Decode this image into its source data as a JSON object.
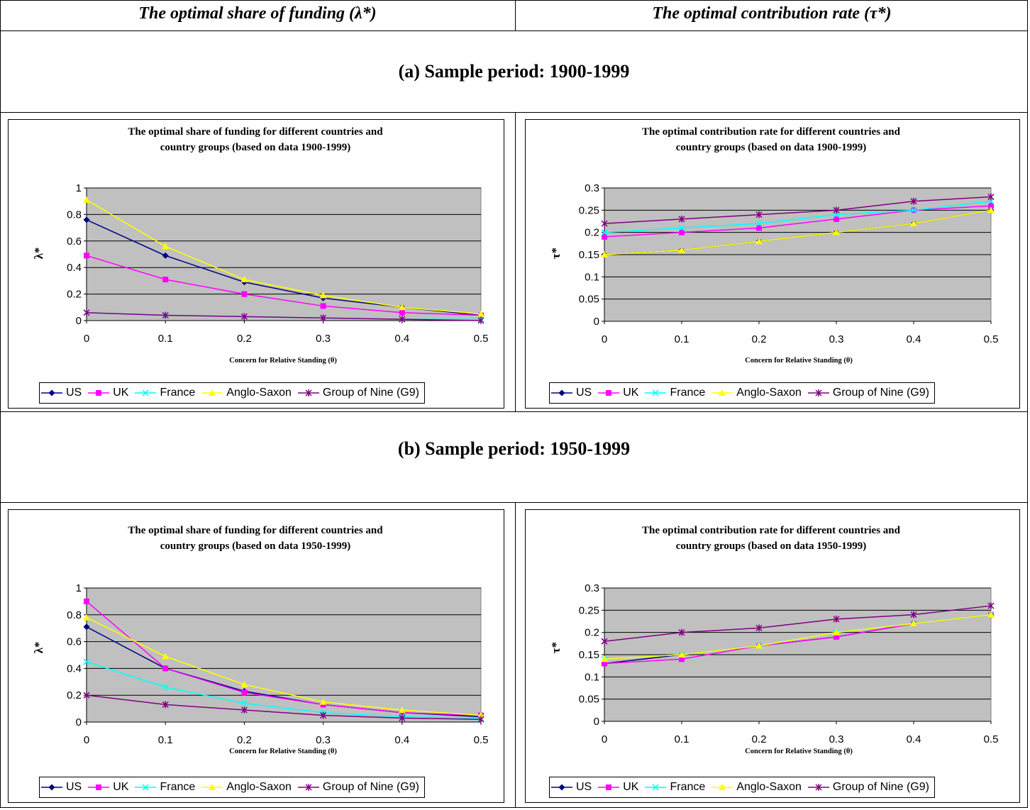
{
  "headers": {
    "left": "The optimal share of funding (λ*)",
    "right": "The optimal contribution rate (τ*)"
  },
  "sections": {
    "a": "(a) Sample period: 1900-1999",
    "b": "(b) Sample period: 1950-1999"
  },
  "legend_labels": [
    "US",
    "UK",
    "France",
    "Anglo-Saxon",
    "Group of Nine (G9)"
  ],
  "colors": {
    "US": "#000080",
    "UK": "#ff00ff",
    "France": "#00ffff",
    "Anglo-Saxon": "#ffff00",
    "G9": "#800080",
    "plot_bg": "#c0c0c0"
  },
  "chart_data": [
    {
      "type": "line",
      "title_line1": "The optimal share of funding for different countries and",
      "title_line2": "country groups (based on data 1900-1999)",
      "xlabel": "Concern for Relative Standing (θ)",
      "ylabel": "λ*",
      "x": [
        0,
        0.1,
        0.2,
        0.3,
        0.4,
        0.5
      ],
      "x_ticks": [
        "0",
        "0.1",
        "0.2",
        "0.3",
        "0.4",
        "0.5"
      ],
      "ylim": [
        0,
        1
      ],
      "y_ticks": [
        "0",
        "0.2",
        "0.4",
        "0.6",
        "0.8",
        "1"
      ],
      "legend_position": "bottom",
      "series": [
        {
          "name": "US",
          "values": [
            0.76,
            0.49,
            0.29,
            0.17,
            0.1,
            0.04
          ]
        },
        {
          "name": "UK",
          "values": [
            0.49,
            0.31,
            0.2,
            0.11,
            0.06,
            0.04
          ]
        },
        {
          "name": "France",
          "values": [
            0.06,
            0.04,
            0.03,
            0.02,
            0.01,
            0.01
          ]
        },
        {
          "name": "Anglo-Saxon",
          "values": [
            0.91,
            0.56,
            0.31,
            0.19,
            0.1,
            0.05
          ]
        },
        {
          "name": "Group of Nine (G9)",
          "values": [
            0.06,
            0.04,
            0.03,
            0.02,
            0.01,
            0.0
          ]
        }
      ]
    },
    {
      "type": "line",
      "title_line1": "The optimal contribution rate for different countries and",
      "title_line2": "country groups (based on data 1900-1999)",
      "xlabel": "Concern for Relative Standing (θ)",
      "ylabel": "τ*",
      "x": [
        0,
        0.1,
        0.2,
        0.3,
        0.4,
        0.5
      ],
      "x_ticks": [
        "0",
        "0.1",
        "0.2",
        "0.3",
        "0.4",
        "0.5"
      ],
      "ylim": [
        0,
        0.3
      ],
      "y_ticks": [
        "0",
        "0.05",
        "0.1",
        "0.15",
        "0.2",
        "0.25",
        "0.3"
      ],
      "legend_position": "bottom",
      "series": [
        {
          "name": "US",
          "values": [
            0.15,
            0.16,
            0.18,
            0.2,
            0.22,
            0.25
          ]
        },
        {
          "name": "UK",
          "values": [
            0.19,
            0.2,
            0.21,
            0.23,
            0.25,
            0.26
          ]
        },
        {
          "name": "France",
          "values": [
            0.2,
            0.21,
            0.22,
            0.24,
            0.25,
            0.27
          ]
        },
        {
          "name": "Anglo-Saxon",
          "values": [
            0.15,
            0.16,
            0.18,
            0.2,
            0.22,
            0.25
          ]
        },
        {
          "name": "Group of Nine (G9)",
          "values": [
            0.22,
            0.23,
            0.24,
            0.25,
            0.27,
            0.28
          ]
        }
      ]
    },
    {
      "type": "line",
      "title_line1": "The optimal share of funding for different countries and",
      "title_line2": "country groups (based on data 1950-1999)",
      "xlabel": "Concern for Relative Standing (θ)",
      "ylabel": "λ*",
      "x": [
        0,
        0.1,
        0.2,
        0.3,
        0.4,
        0.5
      ],
      "x_ticks": [
        "0",
        "0.1",
        "0.2",
        "0.3",
        "0.4",
        "0.5"
      ],
      "ylim": [
        0,
        1
      ],
      "y_ticks": [
        "0",
        "0.2",
        "0.4",
        "0.6",
        "0.8",
        "1"
      ],
      "legend_position": "bottom",
      "series": [
        {
          "name": "US",
          "values": [
            0.71,
            0.4,
            0.23,
            0.13,
            0.07,
            0.04
          ]
        },
        {
          "name": "UK",
          "values": [
            0.9,
            0.4,
            0.22,
            0.13,
            0.07,
            0.05
          ]
        },
        {
          "name": "France",
          "values": [
            0.45,
            0.26,
            0.14,
            0.07,
            0.04,
            0.03
          ]
        },
        {
          "name": "Anglo-Saxon",
          "values": [
            0.78,
            0.49,
            0.28,
            0.15,
            0.09,
            0.05
          ]
        },
        {
          "name": "Group of Nine (G9)",
          "values": [
            0.2,
            0.13,
            0.09,
            0.05,
            0.03,
            0.02
          ]
        }
      ]
    },
    {
      "type": "line",
      "title_line1": "The optimal contribution rate for different countries and",
      "title_line2": "country groups (based on data 1950-1999)",
      "xlabel": "Concern for Relative Standing (θ)",
      "ylabel": "τ*",
      "x": [
        0,
        0.1,
        0.2,
        0.3,
        0.4,
        0.5
      ],
      "x_ticks": [
        "0",
        "0.1",
        "0.2",
        "0.3",
        "0.4",
        "0.5"
      ],
      "ylim": [
        0,
        0.3
      ],
      "y_ticks": [
        "0",
        "0.05",
        "0.1",
        "0.15",
        "0.2",
        "0.25",
        "0.3"
      ],
      "legend_position": "bottom",
      "series": [
        {
          "name": "US",
          "values": [
            0.13,
            0.15,
            0.17,
            0.19,
            0.22,
            0.24
          ]
        },
        {
          "name": "UK",
          "values": [
            0.13,
            0.14,
            0.17,
            0.19,
            0.22,
            0.24
          ]
        },
        {
          "name": "France",
          "values": [
            0.14,
            0.15,
            0.17,
            0.2,
            0.22,
            0.24
          ]
        },
        {
          "name": "Anglo-Saxon",
          "values": [
            0.14,
            0.15,
            0.17,
            0.2,
            0.22,
            0.24
          ]
        },
        {
          "name": "Group of Nine (G9)",
          "values": [
            0.18,
            0.2,
            0.21,
            0.23,
            0.24,
            0.26
          ]
        }
      ]
    }
  ]
}
